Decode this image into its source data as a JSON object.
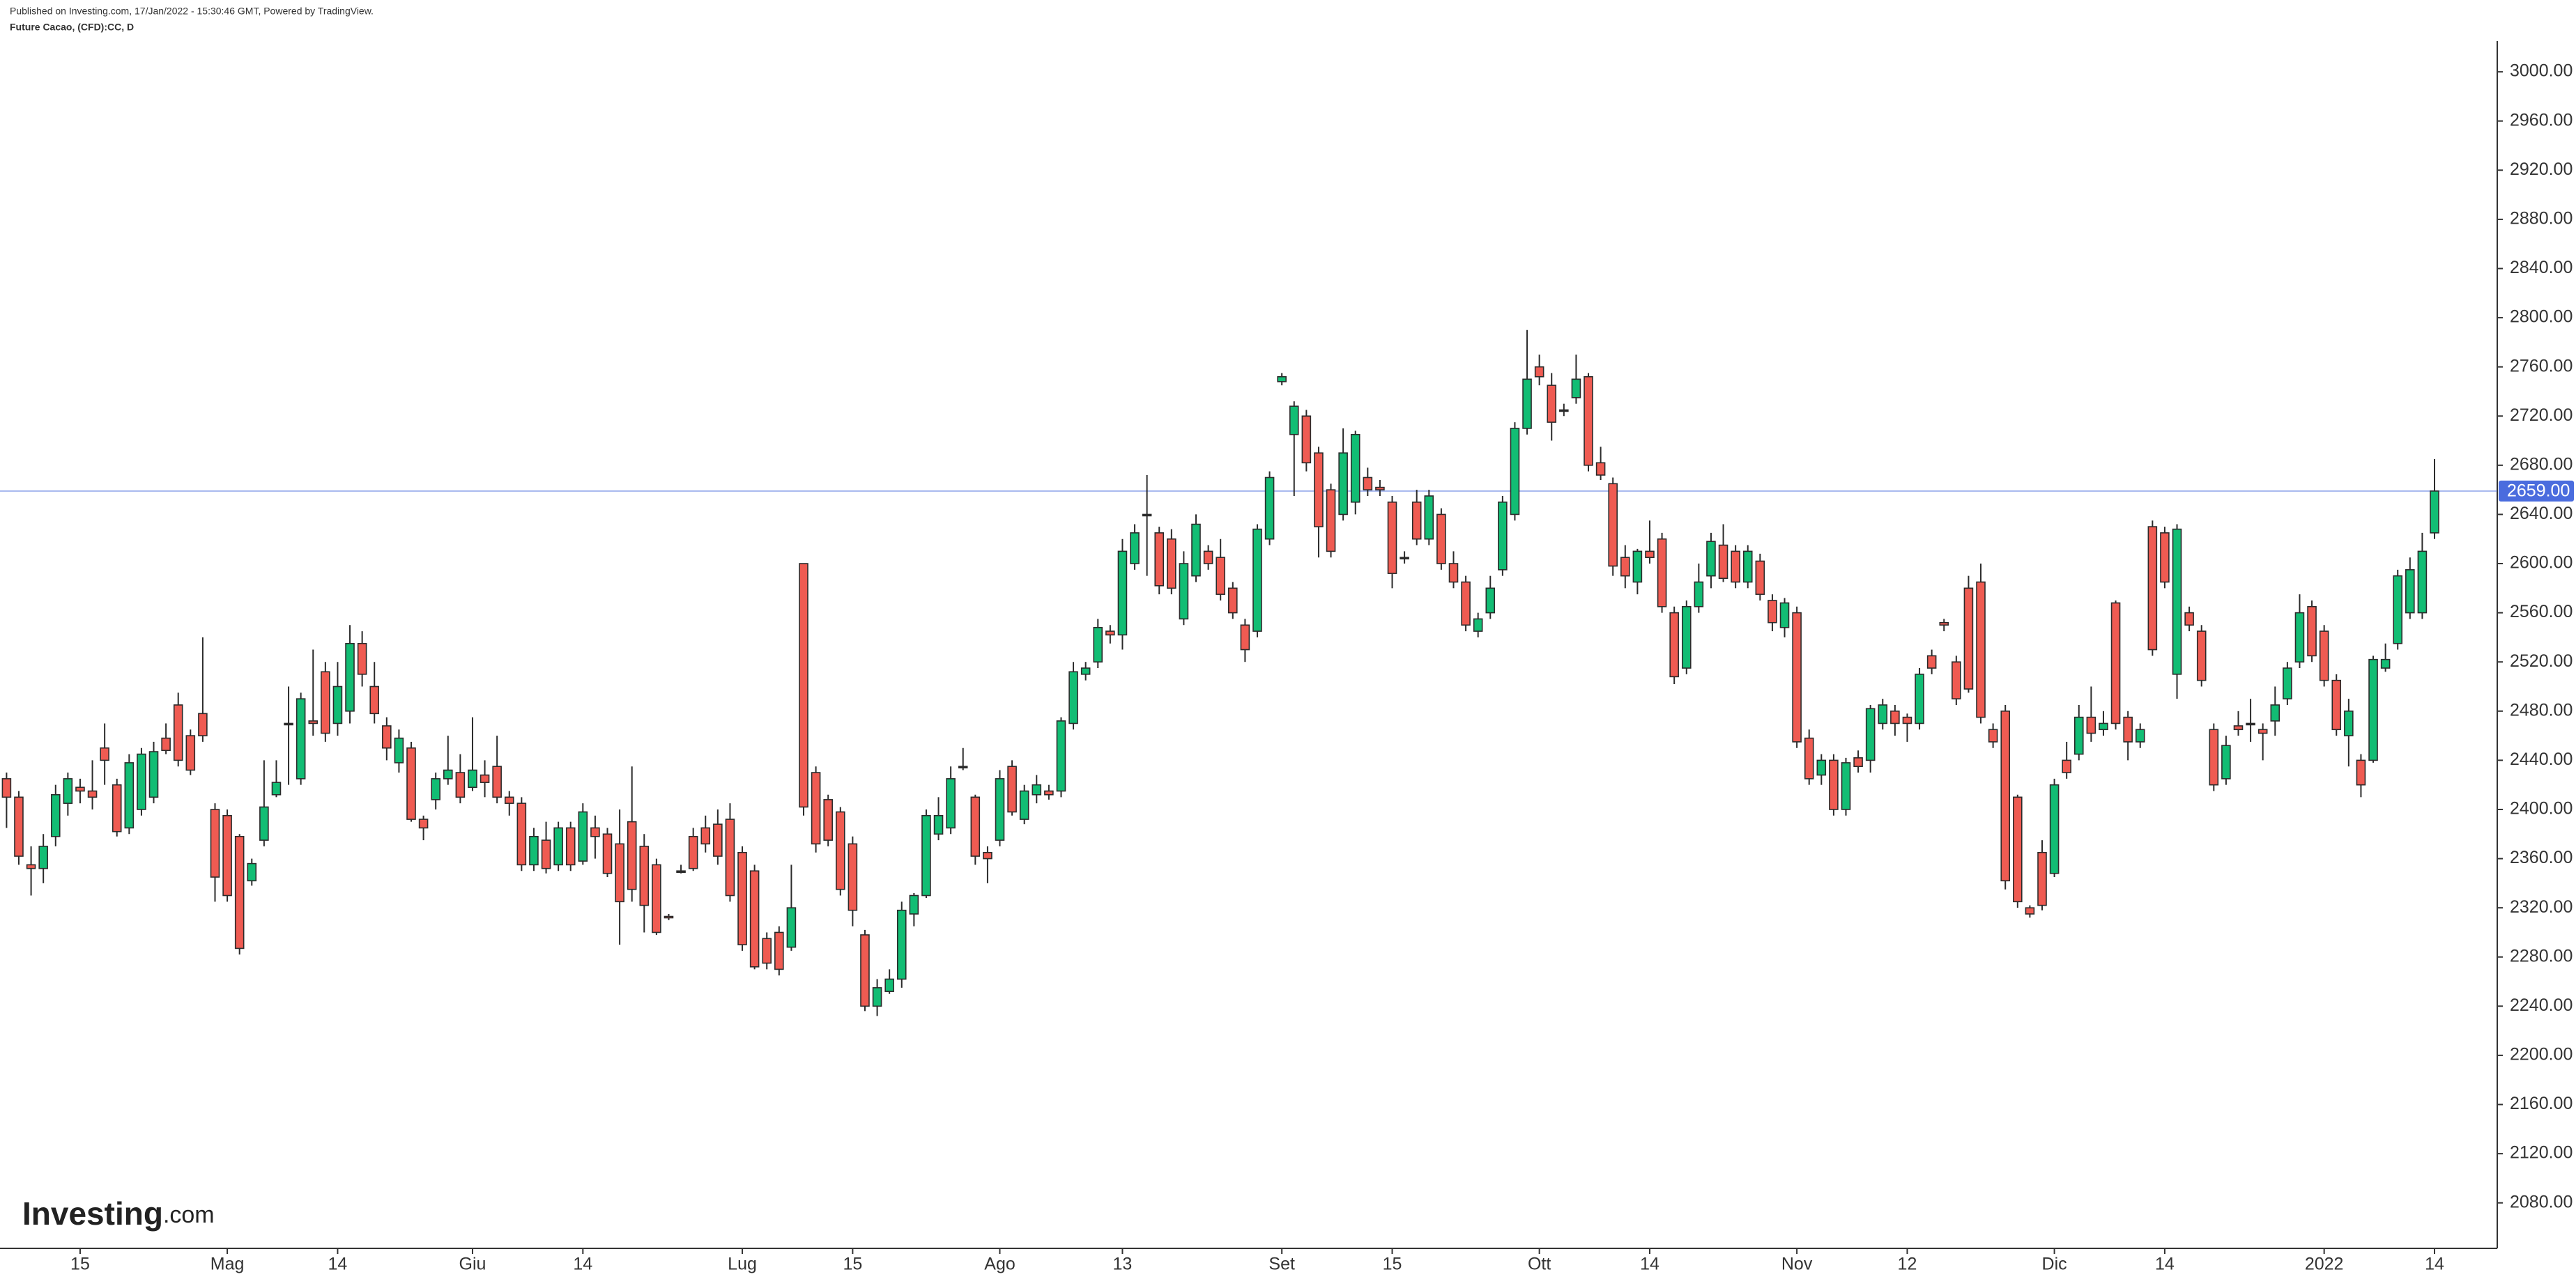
{
  "chart_data": {
    "type": "candlestick",
    "subtitle": "Published on Investing.com, 17/Jan/2022 - 15:30:46 GMT, Powered by TradingView.",
    "title": "Future Cacao, (CFD):CC, D",
    "watermark": {
      "brand": "Investing",
      "suffix": ".com"
    },
    "categories": [
      null,
      null,
      null,
      null,
      null,
      null,
      "15",
      null,
      null,
      null,
      null,
      null,
      null,
      null,
      null,
      null,
      null,
      null,
      "Mag",
      null,
      null,
      null,
      null,
      null,
      null,
      null,
      null,
      "14",
      null,
      null,
      null,
      null,
      null,
      null,
      null,
      null,
      null,
      null,
      "Giu",
      null,
      null,
      null,
      null,
      null,
      null,
      null,
      null,
      "14",
      null,
      null,
      null,
      null,
      null,
      null,
      null,
      null,
      null,
      null,
      null,
      null,
      "Lug",
      null,
      null,
      null,
      null,
      null,
      null,
      null,
      null,
      "15",
      null,
      null,
      null,
      null,
      null,
      null,
      null,
      null,
      null,
      null,
      null,
      "Ago",
      null,
      null,
      null,
      null,
      null,
      null,
      null,
      null,
      null,
      "13",
      null,
      null,
      null,
      null,
      null,
      null,
      null,
      null,
      null,
      null,
      null,
      null,
      "Set",
      null,
      null,
      null,
      null,
      null,
      null,
      null,
      null,
      "15",
      null,
      null,
      null,
      null,
      null,
      null,
      null,
      null,
      null,
      null,
      null,
      "Ott",
      null,
      null,
      null,
      null,
      null,
      null,
      null,
      null,
      "14",
      null,
      null,
      null,
      null,
      null,
      null,
      null,
      null,
      null,
      null,
      null,
      "Nov",
      null,
      null,
      null,
      null,
      null,
      null,
      null,
      null,
      "12",
      null,
      null,
      null,
      null,
      null,
      null,
      null,
      null,
      null,
      null,
      null,
      "Dic",
      null,
      null,
      null,
      null,
      null,
      null,
      null,
      null,
      "14",
      null,
      null,
      null,
      null,
      null,
      null,
      null,
      null,
      null,
      null,
      null,
      null,
      "2022",
      null,
      null,
      null,
      null,
      null,
      null,
      null,
      null,
      "14"
    ],
    "series": {
      "up_color": "#12bd74",
      "down_color": "#ef5b52",
      "open": [
        2425,
        2410,
        2355,
        2352,
        2378,
        2405,
        2418,
        2415,
        2450,
        2420,
        2385,
        2400,
        2410,
        2458,
        2485,
        2460,
        2478,
        2400,
        2395,
        2378,
        2342,
        2375,
        2412,
        2470,
        2425,
        2472,
        2512,
        2470,
        2480,
        2535,
        2500,
        2468,
        2438,
        2450,
        2392,
        2408,
        2425,
        2430,
        2418,
        2428,
        2435,
        2410,
        2405,
        2355,
        2375,
        2355,
        2385,
        2358,
        2385,
        2380,
        2372,
        2390,
        2370,
        2355,
        2313,
        2350,
        2378,
        2385,
        2388,
        2392,
        2365,
        2350,
        2295,
        2300,
        2288,
        2600,
        2430,
        2408,
        2398,
        2372,
        2298,
        2240,
        2252,
        2262,
        2315,
        2330,
        2380,
        2385,
        2435,
        2410,
        2365,
        2375,
        2435,
        2392,
        2412,
        2415,
        2415,
        2470,
        2510,
        2520,
        2545,
        2542,
        2600,
        2640,
        2625,
        2620,
        2555,
        2590,
        2610,
        2605,
        2580,
        2550,
        2545,
        2620,
        2748,
        2705,
        2720,
        2690,
        2660,
        2640,
        2650,
        2670,
        2662,
        2650,
        2605,
        2650,
        2620,
        2640,
        2600,
        2585,
        2545,
        2560,
        2595,
        2640,
        2710,
        2760,
        2745,
        2725,
        2735,
        2752,
        2682,
        2665,
        2605,
        2585,
        2610,
        2620,
        2560,
        2515,
        2565,
        2590,
        2615,
        2610,
        2585,
        2602,
        2570,
        2548,
        2560,
        2458,
        2428,
        2440,
        2400,
        2442,
        2440,
        2470,
        2480,
        2475,
        2470,
        2525,
        2552,
        2520,
        2580,
        2585,
        2465,
        2480,
        2410,
        2320,
        2365,
        2348,
        2440,
        2445,
        2475,
        2465,
        2568,
        2475,
        2455,
        2630,
        2625,
        2510,
        2560,
        2545,
        2465,
        2425,
        2468,
        2470,
        2465,
        2472,
        2490,
        2520,
        2565,
        2545,
        2505,
        2460,
        2440,
        2440,
        2515,
        2535,
        2560,
        2560,
        2625
      ],
      "high": [
        2430,
        2415,
        2370,
        2380,
        2420,
        2430,
        2425,
        2440,
        2470,
        2425,
        2445,
        2450,
        2455,
        2470,
        2495,
        2465,
        2540,
        2405,
        2400,
        2380,
        2360,
        2440,
        2440,
        2500,
        2495,
        2530,
        2520,
        2520,
        2550,
        2545,
        2520,
        2475,
        2465,
        2455,
        2395,
        2430,
        2460,
        2445,
        2475,
        2440,
        2460,
        2415,
        2410,
        2385,
        2390,
        2390,
        2390,
        2405,
        2395,
        2385,
        2400,
        2435,
        2380,
        2360,
        2315,
        2355,
        2385,
        2395,
        2400,
        2405,
        2370,
        2355,
        2300,
        2305,
        2355,
        2600,
        2435,
        2412,
        2402,
        2378,
        2302,
        2262,
        2270,
        2325,
        2332,
        2400,
        2410,
        2435,
        2450,
        2412,
        2370,
        2432,
        2440,
        2420,
        2428,
        2420,
        2475,
        2520,
        2520,
        2555,
        2550,
        2620,
        2632,
        2672,
        2630,
        2628,
        2610,
        2640,
        2615,
        2620,
        2585,
        2555,
        2632,
        2675,
        2755,
        2732,
        2725,
        2695,
        2665,
        2710,
        2708,
        2678,
        2668,
        2655,
        2610,
        2660,
        2660,
        2645,
        2610,
        2590,
        2560,
        2590,
        2655,
        2715,
        2790,
        2770,
        2755,
        2730,
        2770,
        2755,
        2695,
        2670,
        2615,
        2612,
        2635,
        2625,
        2565,
        2570,
        2600,
        2625,
        2632,
        2615,
        2615,
        2608,
        2575,
        2572,
        2565,
        2465,
        2445,
        2445,
        2442,
        2448,
        2485,
        2490,
        2485,
        2478,
        2515,
        2530,
        2555,
        2525,
        2590,
        2600,
        2470,
        2485,
        2412,
        2322,
        2375,
        2425,
        2455,
        2485,
        2500,
        2480,
        2570,
        2480,
        2470,
        2635,
        2630,
        2632,
        2565,
        2550,
        2470,
        2460,
        2480,
        2490,
        2470,
        2500,
        2520,
        2575,
        2570,
        2550,
        2510,
        2490,
        2445,
        2525,
        2535,
        2595,
        2605,
        2625,
        2685
      ],
      "low": [
        2385,
        2355,
        2330,
        2340,
        2370,
        2395,
        2405,
        2400,
        2420,
        2378,
        2380,
        2395,
        2405,
        2445,
        2435,
        2428,
        2455,
        2325,
        2325,
        2282,
        2338,
        2370,
        2410,
        2420,
        2420,
        2460,
        2455,
        2460,
        2470,
        2500,
        2470,
        2440,
        2430,
        2390,
        2375,
        2400,
        2420,
        2405,
        2415,
        2410,
        2405,
        2395,
        2350,
        2350,
        2348,
        2350,
        2350,
        2355,
        2360,
        2345,
        2290,
        2325,
        2300,
        2298,
        2310,
        2348,
        2350,
        2365,
        2355,
        2325,
        2285,
        2270,
        2270,
        2265,
        2285,
        2395,
        2365,
        2370,
        2330,
        2305,
        2236,
        2232,
        2250,
        2255,
        2305,
        2328,
        2375,
        2380,
        2432,
        2355,
        2340,
        2370,
        2395,
        2388,
        2405,
        2408,
        2410,
        2465,
        2505,
        2515,
        2535,
        2530,
        2595,
        2590,
        2575,
        2575,
        2550,
        2585,
        2595,
        2570,
        2555,
        2520,
        2540,
        2615,
        2745,
        2655,
        2675,
        2605,
        2605,
        2635,
        2640,
        2655,
        2655,
        2580,
        2600,
        2615,
        2615,
        2595,
        2580,
        2545,
        2540,
        2555,
        2590,
        2635,
        2705,
        2745,
        2700,
        2720,
        2730,
        2675,
        2668,
        2590,
        2580,
        2575,
        2600,
        2560,
        2502,
        2510,
        2560,
        2580,
        2585,
        2580,
        2580,
        2570,
        2545,
        2540,
        2450,
        2420,
        2420,
        2395,
        2395,
        2430,
        2430,
        2465,
        2460,
        2455,
        2465,
        2510,
        2545,
        2485,
        2495,
        2470,
        2450,
        2335,
        2320,
        2312,
        2318,
        2345,
        2425,
        2440,
        2455,
        2460,
        2465,
        2440,
        2450,
        2525,
        2580,
        2490,
        2545,
        2500,
        2415,
        2420,
        2460,
        2455,
        2440,
        2460,
        2485,
        2515,
        2520,
        2500,
        2460,
        2435,
        2410,
        2438,
        2512,
        2530,
        2555,
        2555,
        2620
      ],
      "close": [
        2410,
        2362,
        2352,
        2370,
        2412,
        2425,
        2415,
        2410,
        2440,
        2382,
        2438,
        2445,
        2447,
        2448,
        2440,
        2432,
        2460,
        2345,
        2330,
        2287,
        2356,
        2402,
        2422,
        2470,
        2490,
        2470,
        2462,
        2500,
        2535,
        2510,
        2478,
        2450,
        2458,
        2392,
        2385,
        2425,
        2432,
        2410,
        2432,
        2422,
        2410,
        2405,
        2355,
        2378,
        2352,
        2385,
        2355,
        2398,
        2378,
        2348,
        2325,
        2335,
        2322,
        2300,
        2312,
        2350,
        2352,
        2372,
        2362,
        2330,
        2290,
        2272,
        2275,
        2270,
        2320,
        2402,
        2372,
        2375,
        2335,
        2318,
        2240,
        2255,
        2262,
        2318,
        2330,
        2395,
        2395,
        2425,
        2435,
        2362,
        2360,
        2425,
        2398,
        2415,
        2420,
        2412,
        2472,
        2512,
        2515,
        2548,
        2542,
        2610,
        2625,
        2640,
        2582,
        2580,
        2600,
        2632,
        2600,
        2575,
        2560,
        2530,
        2628,
        2670,
        2752,
        2728,
        2682,
        2630,
        2610,
        2690,
        2705,
        2660,
        2660,
        2592,
        2605,
        2620,
        2655,
        2600,
        2585,
        2550,
        2555,
        2580,
        2650,
        2710,
        2750,
        2752,
        2715,
        2725,
        2750,
        2680,
        2672,
        2598,
        2590,
        2610,
        2605,
        2565,
        2508,
        2565,
        2585,
        2618,
        2588,
        2585,
        2610,
        2575,
        2552,
        2568,
        2455,
        2425,
        2440,
        2400,
        2438,
        2435,
        2482,
        2485,
        2470,
        2470,
        2510,
        2515,
        2550,
        2490,
        2498,
        2475,
        2455,
        2342,
        2325,
        2315,
        2322,
        2420,
        2430,
        2475,
        2462,
        2470,
        2470,
        2455,
        2465,
        2530,
        2585,
        2628,
        2550,
        2505,
        2420,
        2452,
        2465,
        2470,
        2462,
        2485,
        2515,
        2560,
        2525,
        2505,
        2465,
        2480,
        2420,
        2522,
        2522,
        2590,
        2595,
        2610,
        2659
      ]
    },
    "ylim": [
      2043,
      3025
    ],
    "yticks": [
      {
        "value": 2080,
        "label": "2080.00"
      },
      {
        "value": 2120,
        "label": "2120.00"
      },
      {
        "value": 2160,
        "label": "2160.00"
      },
      {
        "value": 2200,
        "label": "2200.00"
      },
      {
        "value": 2240,
        "label": "2240.00"
      },
      {
        "value": 2280,
        "label": "2280.00"
      },
      {
        "value": 2320,
        "label": "2320.00"
      },
      {
        "value": 2360,
        "label": "2360.00"
      },
      {
        "value": 2400,
        "label": "2400.00"
      },
      {
        "value": 2440,
        "label": "2440.00"
      },
      {
        "value": 2480,
        "label": "2480.00"
      },
      {
        "value": 2520,
        "label": "2520.00"
      },
      {
        "value": 2560,
        "label": "2560.00"
      },
      {
        "value": 2600,
        "label": "2600.00"
      },
      {
        "value": 2640,
        "label": "2640.00"
      },
      {
        "value": 2680,
        "label": "2680.00"
      },
      {
        "value": 2720,
        "label": "2720.00"
      },
      {
        "value": 2760,
        "label": "2760.00"
      },
      {
        "value": 2800,
        "label": "2800.00"
      },
      {
        "value": 2840,
        "label": "2840.00"
      },
      {
        "value": 2880,
        "label": "2880.00"
      },
      {
        "value": 2920,
        "label": "2920.00"
      },
      {
        "value": 2960,
        "label": "2960.00"
      },
      {
        "value": 3000,
        "label": "3000.00"
      }
    ],
    "last_price": {
      "value": 2659,
      "label": "2659.00",
      "color": "#4a6cde"
    },
    "grid": false
  }
}
